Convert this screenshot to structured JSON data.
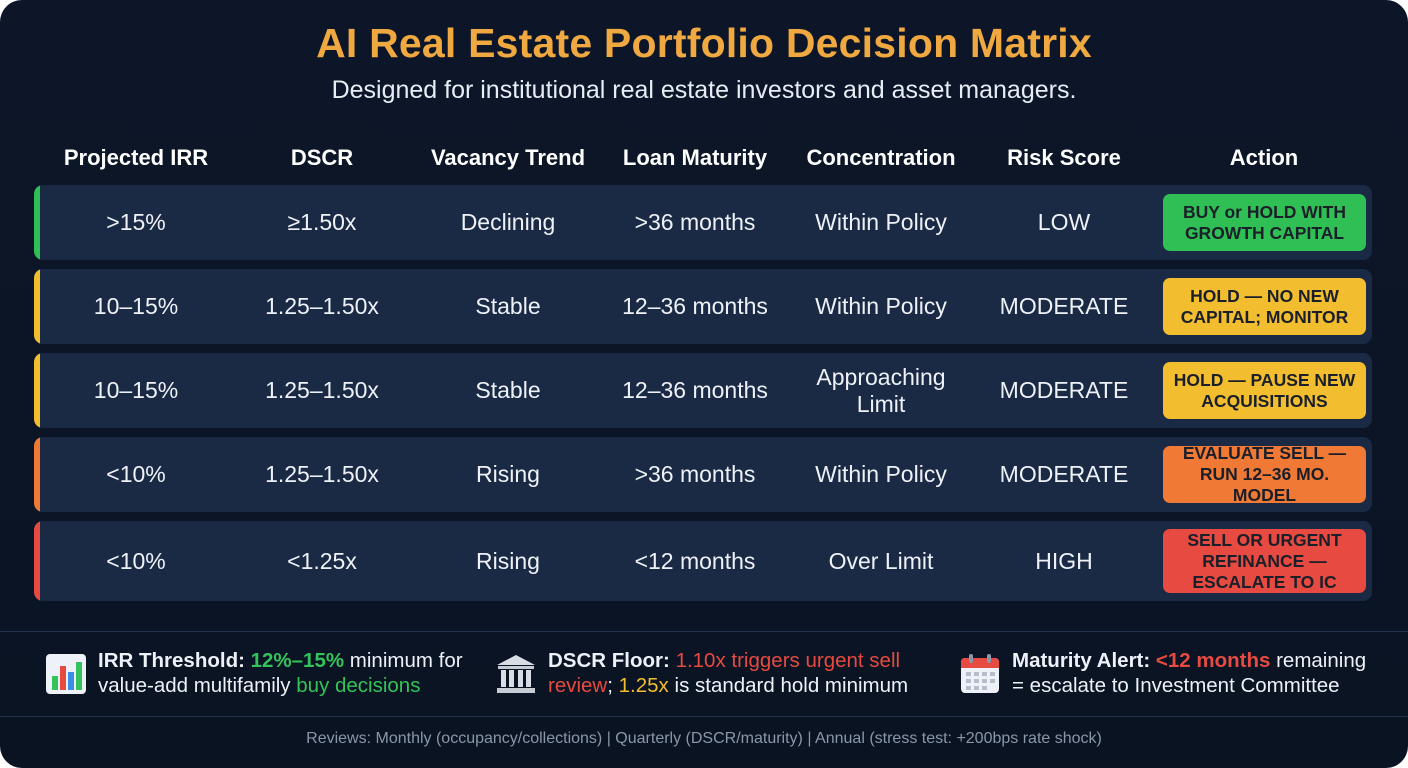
{
  "title": "AI Real Estate Portfolio Decision Matrix",
  "subtitle": "Designed for institutional real estate investors and asset managers.",
  "columns": [
    "Projected IRR",
    "DSCR",
    "Vacancy Trend",
    "Loan Maturity",
    "Concentration",
    "Risk Score",
    "Action"
  ],
  "rows": [
    {
      "irr": ">15%",
      "dscr": "≥1.50x",
      "vacancy": "Declining",
      "maturity": ">36 months",
      "concentration": "Within Policy",
      "risk": "LOW",
      "action": "BUY or HOLD WITH GROWTH CAPITAL",
      "accent": "#2fbf55",
      "action_bg": "#2fbf55"
    },
    {
      "irr": "10–15%",
      "dscr": "1.25–1.50x",
      "vacancy": "Stable",
      "maturity": "12–36 months",
      "concentration": "Within Policy",
      "risk": "MODERATE",
      "action": "HOLD — NO NEW CAPITAL; MONITOR",
      "accent": "#f2bd2e",
      "action_bg": "#f2bd2e"
    },
    {
      "irr": "10–15%",
      "dscr": "1.25–1.50x",
      "vacancy": "Stable",
      "maturity": "12–36 months",
      "concentration": "Approaching Limit",
      "risk": "MODERATE",
      "action": "HOLD — PAUSE NEW ACQUISITIONS",
      "accent": "#f2bd2e",
      "action_bg": "#f2bd2e"
    },
    {
      "irr": "<10%",
      "dscr": "1.25–1.50x",
      "vacancy": "Rising",
      "maturity": ">36 months",
      "concentration": "Within Policy",
      "risk": "MODERATE",
      "action": "EVALUATE SELL — RUN 12–36 MO. MODEL",
      "accent": "#f07a35",
      "action_bg": "#f07a35"
    },
    {
      "irr": "<10%",
      "dscr": "<1.25x",
      "vacancy": "Rising",
      "maturity": "<12 months",
      "concentration": "Over Limit",
      "risk": "HIGH",
      "action": "SELL OR URGENT REFINANCE — ESCALATE TO IC",
      "accent": "#e64a40",
      "action_bg": "#e64a40"
    }
  ],
  "notes": {
    "irr": {
      "icon": "bar-chart-icon",
      "label": "IRR Threshold:",
      "value": "12%–15%",
      "text1": " minimum for",
      "text2": "value-add multifamily ",
      "text3": "buy decisions"
    },
    "dscr": {
      "icon": "bank-icon",
      "label": "DSCR Floor:",
      "value": "1.10x",
      "text1": " triggers urgent sell",
      "text2": "review",
      "text3": "; ",
      "value2": "1.25x",
      "text4": " is standard hold minimum"
    },
    "maturity": {
      "icon": "calendar-icon",
      "label": "Maturity Alert:",
      "value": "<12 months",
      "text1": " remaining",
      "text2": "= escalate to Investment Committee"
    }
  },
  "footer": "Reviews: Monthly (occupancy/collections) | Quarterly (DSCR/maturity) | Annual (stress test: +200bps rate shock)"
}
